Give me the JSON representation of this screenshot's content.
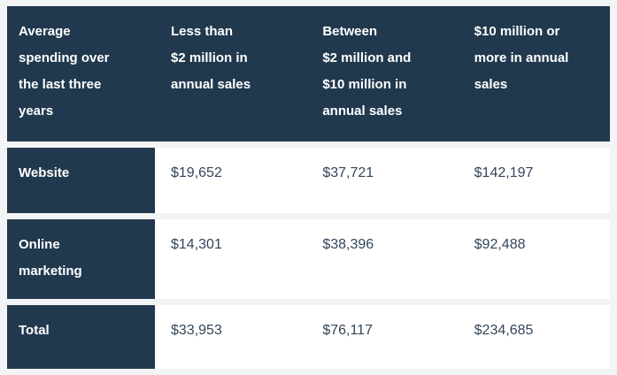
{
  "table": {
    "header": {
      "col0": "Average\nspending over\nthe last three\nyears",
      "col1": "Less than\n$2 million in\nannual sales",
      "col2": "Between\n$2 million and\n$10 million in\nannual sales",
      "col3": "$10 million or\nmore in annual\nsales"
    },
    "rows": [
      {
        "label": "Website",
        "values": [
          "$19,652",
          "$37,721",
          "$142,197"
        ]
      },
      {
        "label": "Online\nmarketing",
        "values": [
          "$14,301",
          "$38,396",
          "$92,488"
        ]
      },
      {
        "label": "Total",
        "values": [
          "$33,953",
          "$76,117",
          "$234,685"
        ]
      }
    ],
    "colors": {
      "header_background": "#21394e",
      "cell_background": "#ffffff",
      "page_background": "#f3f4f5",
      "header_text": "#ffffff",
      "value_text": "#33455a"
    }
  },
  "chart_data": {
    "type": "table",
    "title": "Average spending over the last three years",
    "columns": [
      "Average spending over the last three years",
      "Less than $2 million in annual sales",
      "Between $2 million and $10 million in annual sales",
      "$10 million or more in annual sales"
    ],
    "rows": [
      [
        "Website",
        19652,
        37721,
        142197
      ],
      [
        "Online marketing",
        14301,
        38396,
        92488
      ],
      [
        "Total",
        33953,
        76117,
        234685
      ]
    ],
    "units": "USD",
    "layout": "header row and first column on dark navy, values on white cells separated by light gray gaps"
  }
}
